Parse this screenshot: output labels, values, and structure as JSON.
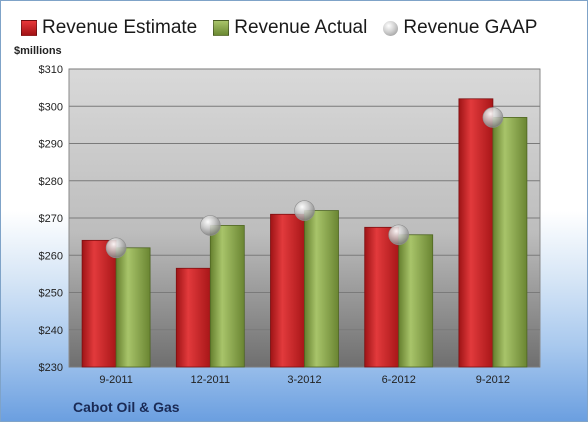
{
  "chart_data": {
    "type": "bar",
    "categories": [
      "9-2011",
      "12-2011",
      "3-2012",
      "6-2012",
      "9-2012"
    ],
    "series": [
      {
        "name": "Revenue Estimate",
        "type": "bar",
        "values": [
          264,
          256.5,
          271,
          267.5,
          302
        ]
      },
      {
        "name": "Revenue Actual",
        "type": "bar",
        "values": [
          262,
          268,
          272,
          265.5,
          297
        ]
      },
      {
        "name": "Revenue GAAP",
        "type": "point",
        "values": [
          262,
          268,
          272,
          265.5,
          297
        ]
      }
    ],
    "ylabel": "$millions",
    "ylim": [
      230,
      310
    ],
    "yticks": [
      230,
      240,
      250,
      260,
      270,
      280,
      290,
      300,
      310
    ],
    "ytick_labels": [
      "$230",
      "$240",
      "$250",
      "$260",
      "$270",
      "$280",
      "$290",
      "$300",
      "$310"
    ],
    "grid": true,
    "legend_position": "top",
    "footer": "Cabot Oil & Gas"
  },
  "colors": {
    "estimate": "#c42326",
    "actual": "#8aaa48",
    "gaap": "#b5b5b5"
  }
}
